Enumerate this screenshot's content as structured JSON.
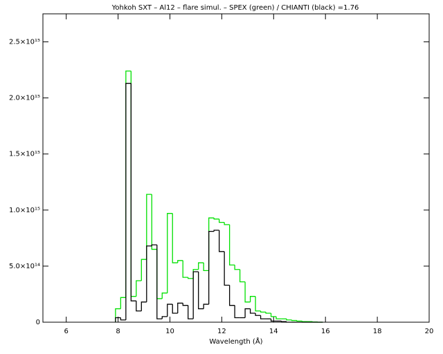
{
  "chart_data": {
    "type": "histogram",
    "title": "Yohkoh SXT – Al12 – flare simul. –  SPEX (green) / CHIANTI (black) =1.76",
    "x_label": "Wavelength (Å)",
    "bins": [
      7.9,
      8.1,
      8.3,
      8.5,
      8.7,
      8.9,
      9.1,
      9.3,
      9.5,
      9.7,
      9.9,
      10.1,
      10.3,
      10.5,
      10.7,
      10.9,
      11.1,
      11.3,
      11.5,
      11.7,
      11.9,
      12.1,
      12.3,
      12.5,
      12.7,
      12.9,
      13.1,
      13.3,
      13.5,
      13.7,
      13.9,
      14.1,
      14.3,
      14.5,
      14.7,
      14.9,
      15.1,
      15.3,
      15.5,
      15.7,
      15.9
    ],
    "series": [
      {
        "color": "#00e000",
        "values": [
          120000000000000.0,
          220000000000000.0,
          2240000000000000.0,
          230000000000000.0,
          370000000000000.0,
          560000000000000.0,
          1140000000000000.0,
          650000000000000.0,
          210000000000000.0,
          260000000000000.0,
          970000000000000.0,
          530000000000000.0,
          550000000000000.0,
          400000000000000.0,
          390000000000000.0,
          470000000000000.0,
          530000000000000.0,
          460000000000000.0,
          930000000000000.0,
          920000000000000.0,
          890000000000000.0,
          870000000000000.0,
          510000000000000.0,
          470000000000000.0,
          360000000000000.0,
          180000000000000.0,
          230000000000000.0,
          100000000000000.0,
          90000000000000.0,
          80000000000000.0,
          50000000000000.0,
          30000000000000.0,
          30000000000000.0,
          20000000000000.0,
          15000000000000.0,
          10000000000000.0,
          5000000000000.0,
          5000000000000.0,
          2000000000000.0,
          0
        ]
      },
      {
        "color": "#000000",
        "values": [
          40000000000000.0,
          20000000000000.0,
          2130000000000000.0,
          190000000000000.0,
          100000000000000.0,
          180000000000000.0,
          680000000000000.0,
          690000000000000.0,
          30000000000000.0,
          50000000000000.0,
          160000000000000.0,
          80000000000000.0,
          170000000000000.0,
          150000000000000.0,
          30000000000000.0,
          450000000000000.0,
          120000000000000.0,
          160000000000000.0,
          810000000000000.0,
          820000000000000.0,
          630000000000000.0,
          330000000000000.0,
          150000000000000.0,
          40000000000000.0,
          40000000000000.0,
          120000000000000.0,
          80000000000000.0,
          60000000000000.0,
          30000000000000.0,
          30000000000000.0,
          10000000000000.0,
          10000000000000.0,
          5000000000000.0,
          0,
          0,
          0,
          0,
          0,
          0,
          0
        ]
      }
    ],
    "xlim": [
      5.1,
      20
    ],
    "ylim": [
      0,
      2750000000000000.0
    ],
    "xticks": [
      6,
      8,
      10,
      12,
      14,
      16,
      18,
      20
    ],
    "yticks": [
      0,
      {
        "value": 500000000000000.0,
        "label": "5.0×10¹⁴"
      },
      {
        "value": 1000000000000000.0,
        "label": "1.0×10¹⁵"
      },
      {
        "value": 1500000000000000.0,
        "label": "1.5×10¹⁵"
      },
      {
        "value": 2000000000000000.0,
        "label": "2.0×10¹⁵"
      },
      {
        "value": 2500000000000000.0,
        "label": "2.5×10¹⁵"
      }
    ]
  }
}
